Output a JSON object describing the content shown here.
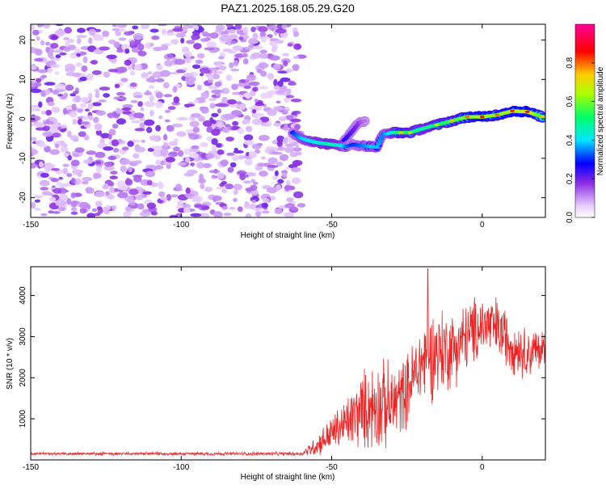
{
  "title": "PAZ1.2025.168.05.29.G20",
  "chart_data": [
    {
      "type": "heatmap",
      "xlabel": "Height of straight line (km)",
      "ylabel": "Frequency (Hz)",
      "xlim": [
        -150,
        21
      ],
      "ylim": [
        -25,
        24
      ],
      "xticks": [
        -150,
        -100,
        -50,
        0
      ],
      "yticks": [
        -20,
        -10,
        0,
        10,
        20
      ],
      "colorbar": {
        "label": "Normalized spectral amplitude",
        "range": [
          0,
          1
        ],
        "ticks": [
          0.0,
          0.2,
          0.4,
          0.6,
          0.8
        ]
      },
      "noise_region_x": [
        -150,
        -60
      ],
      "ridge": {
        "x": [
          -63,
          -60,
          -55,
          -50,
          -47,
          -45,
          -43,
          -40,
          -37,
          -35,
          -33,
          -30,
          -27,
          -24,
          -20,
          -15,
          -10,
          -5,
          0,
          5,
          10,
          15,
          20
        ],
        "y": [
          -3.5,
          -5,
          -6,
          -6.5,
          -6.8,
          -7,
          -6.5,
          -6.8,
          -7,
          -7.2,
          -4,
          -3.5,
          -3.5,
          -3.5,
          -2.5,
          -1.5,
          -0.5,
          0.5,
          0.5,
          1,
          2,
          1.8,
          0.5
        ],
        "amplitude": [
          0.35,
          0.45,
          0.5,
          0.55,
          0.5,
          0.4,
          0.35,
          0.4,
          0.45,
          0.45,
          0.4,
          0.5,
          0.65,
          0.6,
          0.55,
          0.6,
          0.65,
          0.7,
          0.75,
          0.7,
          0.75,
          0.8,
          0.65
        ]
      },
      "side_branch": {
        "x": [
          -46,
          -43,
          -41,
          -39
        ],
        "y": [
          -5.5,
          -3,
          -1,
          -0.5
        ],
        "amplitude": [
          0.3,
          0.25,
          0.2,
          0.15
        ]
      }
    },
    {
      "type": "line",
      "xlabel": "Height of straight line (km)",
      "ylabel": "SNR (10 * v/v)",
      "xlim": [
        -150,
        21
      ],
      "ylim": [
        0,
        4700
      ],
      "xticks": [
        -150,
        -100,
        -50,
        0
      ],
      "yticks": [
        1000,
        2000,
        3000,
        4000
      ],
      "series": [
        {
          "color": "#ee2222",
          "envelope_x": [
            -150,
            -60,
            -55,
            -50,
            -45,
            -40,
            -35,
            -30,
            -25,
            -20,
            -15,
            -10,
            -5,
            0,
            5,
            10,
            15,
            20
          ],
          "envelope_mean": [
            150,
            150,
            350,
            650,
            900,
            1200,
            1350,
            1300,
            1700,
            2400,
            2650,
            2700,
            3000,
            3300,
            3200,
            2800,
            2600,
            2700
          ],
          "envelope_amp": [
            40,
            50,
            300,
            500,
            750,
            1100,
            1300,
            1200,
            1000,
            1200,
            1300,
            1100,
            1000,
            900,
            900,
            800,
            700,
            600
          ],
          "peak": {
            "x": -18,
            "y": 4650
          }
        }
      ]
    }
  ]
}
